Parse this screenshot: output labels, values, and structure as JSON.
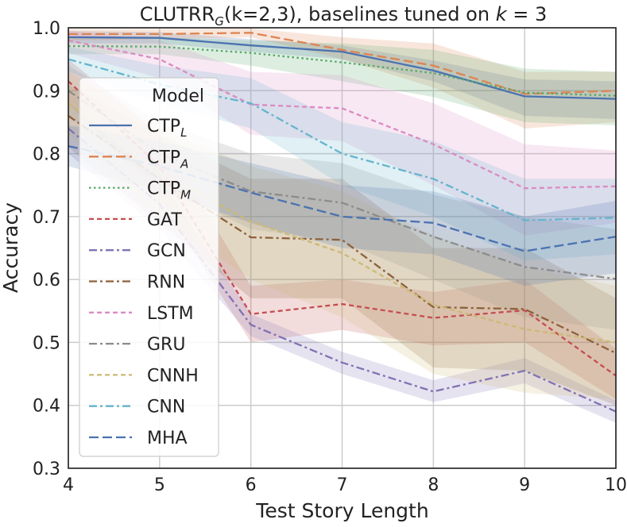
{
  "chart_data": {
    "type": "line",
    "title": {
      "prefix": "CLUTRR",
      "sub": "G",
      "middle": "(k=2,3), baselines tuned on ",
      "var": "k",
      "suffix": " = 3"
    },
    "xlabel": "Test Story Length",
    "ylabel": "Accuracy",
    "xlim": [
      4,
      10
    ],
    "ylim": [
      0.3,
      1.0
    ],
    "xticks": [
      4,
      5,
      6,
      7,
      8,
      9,
      10
    ],
    "yticks": [
      "0.3",
      "0.4",
      "0.5",
      "0.6",
      "0.7",
      "0.8",
      "0.9",
      "1.0"
    ],
    "grid": true,
    "legend": {
      "title": "Model",
      "placement": "left"
    },
    "x": [
      4,
      5,
      6,
      7,
      8,
      9,
      10
    ],
    "series": [
      {
        "name": "CTP",
        "sub": "L",
        "color": "#4c72b0",
        "dash": "solid",
        "values": [
          0.985,
          0.984,
          0.972,
          0.962,
          0.932,
          0.891,
          0.887
        ],
        "lower": [
          0.975,
          0.975,
          0.962,
          0.95,
          0.915,
          0.86,
          0.855
        ],
        "upper": [
          0.995,
          0.993,
          0.982,
          0.972,
          0.948,
          0.918,
          0.915
        ]
      },
      {
        "name": "CTP",
        "sub": "A",
        "color": "#dd8452",
        "dash": "dashed",
        "values": [
          0.99,
          0.99,
          0.992,
          0.965,
          0.94,
          0.895,
          0.9
        ],
        "lower": [
          0.98,
          0.982,
          0.985,
          0.95,
          0.905,
          0.84,
          0.85
        ],
        "upper": [
          0.998,
          0.998,
          0.999,
          0.985,
          0.975,
          0.93,
          0.93
        ]
      },
      {
        "name": "CTP",
        "sub": "M",
        "color": "#55a868",
        "dash": "dotted",
        "values": [
          0.971,
          0.97,
          0.96,
          0.945,
          0.928,
          0.897,
          0.892
        ],
        "lower": [
          0.958,
          0.958,
          0.94,
          0.915,
          0.89,
          0.85,
          0.845
        ],
        "upper": [
          0.985,
          0.985,
          0.98,
          0.975,
          0.965,
          0.935,
          0.93
        ]
      },
      {
        "name": "GAT",
        "sub": "",
        "color": "#c44e52",
        "dash": "dashdense",
        "values": [
          0.915,
          0.78,
          0.545,
          0.561,
          0.539,
          0.551,
          0.447
        ],
        "lower": [
          0.88,
          0.73,
          0.5,
          0.52,
          0.495,
          0.5,
          0.41
        ],
        "upper": [
          0.95,
          0.83,
          0.59,
          0.6,
          0.58,
          0.6,
          0.49
        ]
      },
      {
        "name": "GCN",
        "sub": "",
        "color": "#8172b3",
        "dash": "dashdot",
        "values": [
          0.84,
          0.72,
          0.528,
          0.468,
          0.422,
          0.455,
          0.39
        ],
        "lower": [
          0.8,
          0.68,
          0.51,
          0.45,
          0.405,
          0.435,
          0.372
        ],
        "upper": [
          0.88,
          0.76,
          0.545,
          0.485,
          0.44,
          0.475,
          0.408
        ]
      },
      {
        "name": "RNN",
        "sub": "",
        "color": "#8c613c",
        "dash": "dashdot",
        "values": [
          0.86,
          0.76,
          0.667,
          0.663,
          0.556,
          0.553,
          0.483
        ],
        "lower": [
          0.81,
          0.69,
          0.57,
          0.57,
          0.46,
          0.455,
          0.4
        ],
        "upper": [
          0.91,
          0.83,
          0.76,
          0.76,
          0.65,
          0.65,
          0.57
        ]
      },
      {
        "name": "LSTM",
        "sub": "",
        "color": "#da8bc3",
        "dash": "dashdense",
        "values": [
          0.98,
          0.95,
          0.878,
          0.872,
          0.815,
          0.745,
          0.748
        ],
        "lower": [
          0.96,
          0.92,
          0.83,
          0.82,
          0.75,
          0.67,
          0.69
        ],
        "upper": [
          0.995,
          0.98,
          0.93,
          0.925,
          0.88,
          0.815,
          0.805
        ]
      },
      {
        "name": "GRU",
        "sub": "",
        "color": "#8c8c8c",
        "dash": "dashdot",
        "values": [
          0.9,
          0.8,
          0.74,
          0.722,
          0.668,
          0.62,
          0.601
        ],
        "lower": [
          0.86,
          0.75,
          0.68,
          0.66,
          0.6,
          0.54,
          0.52
        ],
        "upper": [
          0.94,
          0.85,
          0.8,
          0.785,
          0.735,
          0.7,
          0.68
        ]
      },
      {
        "name": "CNNH",
        "sub": "",
        "color": "#ccb974",
        "dash": "dashdense",
        "values": [
          0.88,
          0.77,
          0.692,
          0.642,
          0.56,
          0.521,
          0.5
        ],
        "lower": [
          0.83,
          0.7,
          0.6,
          0.54,
          0.45,
          0.42,
          0.41
        ],
        "upper": [
          0.93,
          0.84,
          0.78,
          0.74,
          0.67,
          0.62,
          0.59
        ]
      },
      {
        "name": "CNN",
        "sub": "",
        "color": "#64b5cd",
        "dash": "dashdot",
        "values": [
          0.95,
          0.91,
          0.88,
          0.8,
          0.76,
          0.694,
          0.698
        ],
        "lower": [
          0.93,
          0.88,
          0.84,
          0.75,
          0.7,
          0.63,
          0.64
        ],
        "upper": [
          0.97,
          0.94,
          0.92,
          0.85,
          0.82,
          0.76,
          0.76
        ]
      },
      {
        "name": "MHA",
        "sub": "",
        "color": "#4c72b0",
        "dash": "dashed",
        "values": [
          0.812,
          0.78,
          0.738,
          0.7,
          0.69,
          0.645,
          0.668
        ],
        "lower": [
          0.78,
          0.74,
          0.69,
          0.65,
          0.64,
          0.59,
          0.61
        ],
        "upper": [
          0.845,
          0.82,
          0.785,
          0.75,
          0.74,
          0.7,
          0.725
        ]
      }
    ]
  }
}
